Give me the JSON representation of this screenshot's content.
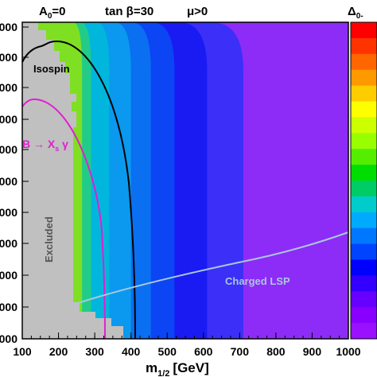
{
  "header": {
    "a0": "A",
    "a0_sub": "0",
    "a0_value": "=0",
    "tanbeta": "tan β=30",
    "mu": "μ>0"
  },
  "colorbar": {
    "title": "Δ",
    "title_sub": "0-",
    "colors": [
      "#ff0000",
      "#ff3300",
      "#ff6600",
      "#ff9900",
      "#ffcc00",
      "#ffff00",
      "#ccff00",
      "#99ff00",
      "#55ee00",
      "#00dd00",
      "#00cc66",
      "#00cccc",
      "#00aaff",
      "#0077ff",
      "#0044ff",
      "#0000ff",
      "#3300ff",
      "#6600ff",
      "#8800ff",
      "#9911ff"
    ]
  },
  "chart_data": {
    "type": "heatmap",
    "xlabel": "m",
    "xlabel_sub": "1/2",
    "xlabel_unit": "[GeV]",
    "xlim": [
      100,
      1000
    ],
    "x_ticks": [
      "100",
      "200",
      "300",
      "400",
      "500",
      "600",
      "700",
      "800",
      "900",
      "1000"
    ],
    "y_ticks": [
      "000",
      "000",
      "000",
      "000",
      "000",
      "000",
      "000",
      "000",
      "000",
      "000",
      "000",
      "0"
    ],
    "bands": [
      {
        "x_from": 710,
        "x_to": 1000,
        "color": "#8d2cf6"
      },
      {
        "x_from": 610,
        "x_to": 710,
        "color": "#3b2ff8"
      },
      {
        "x_from": 520,
        "x_to": 610,
        "color": "#1a1bf2"
      },
      {
        "x_from": 455,
        "x_to": 520,
        "color": "#0b45f4"
      },
      {
        "x_from": 400,
        "x_to": 455,
        "color": "#0a6ff0"
      },
      {
        "x_from": 340,
        "x_to": 400,
        "color": "#0a99ee"
      },
      {
        "x_from": 290,
        "x_to": 340,
        "color": "#00b6dd"
      },
      {
        "x_from": 265,
        "x_to": 290,
        "color": "#22cc88"
      },
      {
        "x_from": 250,
        "x_to": 265,
        "color": "#7fdf22"
      }
    ],
    "regions": [
      {
        "name": "Excluded",
        "color": "#c0c0c0"
      }
    ],
    "curves": [
      {
        "name": "Isospin",
        "color": "#000000"
      },
      {
        "name": "B → X_s γ",
        "color": "#e020d0"
      },
      {
        "name": "Charged LSP",
        "color": "#a8c8e0"
      }
    ],
    "labels": {
      "isospin": "Isospin",
      "bsg_main": "B → X",
      "bsg_sub": "s",
      "bsg_tail": " γ",
      "excluded": "Excluded",
      "charged_lsp": "Charged LSP"
    }
  }
}
